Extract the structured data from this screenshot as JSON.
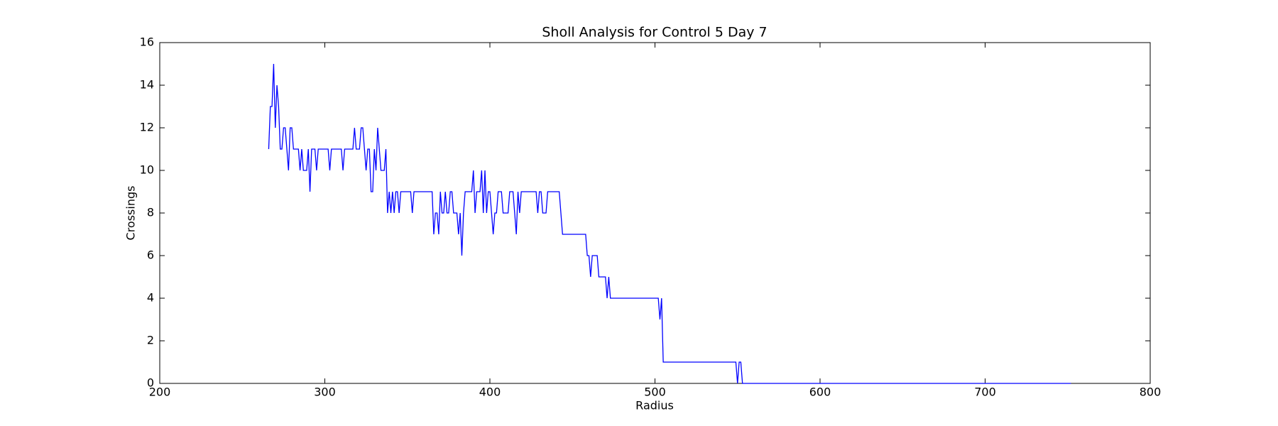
{
  "chart_data": {
    "type": "line",
    "title": "Sholl Analysis for Control 5 Day 7",
    "xlabel": "Radius",
    "ylabel": "Crossings",
    "color": "#0000ff",
    "x": [
      266,
      267,
      268,
      269,
      270,
      271,
      272,
      273,
      274,
      275,
      276,
      277,
      278,
      279,
      280,
      281,
      282,
      283,
      284,
      285,
      286,
      287,
      288,
      289,
      290,
      291,
      292,
      293,
      294,
      295,
      296,
      297,
      298,
      299,
      300,
      301,
      302,
      303,
      304,
      305,
      306,
      307,
      308,
      309,
      310,
      311,
      312,
      313,
      314,
      315,
      316,
      317,
      318,
      319,
      320,
      321,
      322,
      323,
      324,
      325,
      326,
      327,
      328,
      329,
      330,
      331,
      332,
      333,
      334,
      335,
      336,
      337,
      338,
      339,
      340,
      341,
      342,
      343,
      344,
      345,
      346,
      347,
      348,
      349,
      350,
      351,
      352,
      353,
      354,
      355,
      356,
      357,
      358,
      359,
      360,
      361,
      362,
      363,
      364,
      365,
      366,
      367,
      368,
      369,
      370,
      371,
      372,
      373,
      374,
      375,
      376,
      377,
      378,
      379,
      380,
      381,
      382,
      383,
      384,
      385,
      386,
      387,
      388,
      389,
      390,
      391,
      392,
      393,
      394,
      395,
      396,
      397,
      398,
      399,
      400,
      401,
      402,
      403,
      404,
      405,
      406,
      407,
      408,
      409,
      410,
      411,
      412,
      413,
      414,
      415,
      416,
      417,
      418,
      419,
      420,
      421,
      422,
      423,
      424,
      425,
      426,
      427,
      428,
      429,
      430,
      431,
      432,
      433,
      434,
      435,
      436,
      437,
      438,
      439,
      440,
      441,
      442,
      443,
      444,
      445,
      446,
      447,
      448,
      449,
      450,
      451,
      452,
      453,
      454,
      455,
      456,
      457,
      458,
      459,
      460,
      461,
      462,
      463,
      464,
      465,
      466,
      467,
      468,
      469,
      470,
      471,
      472,
      473,
      474,
      475,
      476,
      477,
      478,
      479,
      480,
      481,
      482,
      483,
      484,
      485,
      486,
      487,
      488,
      489,
      490,
      491,
      492,
      493,
      494,
      495,
      496,
      497,
      498,
      499,
      500,
      501,
      502,
      503,
      504,
      505,
      506,
      507,
      508,
      509,
      510,
      511,
      512,
      513,
      514,
      515,
      516,
      517,
      518,
      519,
      520,
      521,
      522,
      523,
      524,
      525,
      526,
      527,
      528,
      529,
      530,
      531,
      532,
      533,
      534,
      535,
      536,
      537,
      538,
      539,
      540,
      541,
      542,
      543,
      544,
      545,
      546,
      547,
      548,
      549,
      550,
      551,
      552,
      553,
      752
    ],
    "values": [
      11,
      13,
      13,
      15,
      12,
      14,
      13,
      11,
      11,
      12,
      12,
      11,
      10,
      12,
      12,
      11,
      11,
      11,
      11,
      10,
      11,
      10,
      10,
      10,
      11,
      9,
      11,
      11,
      11,
      10,
      11,
      11,
      11,
      11,
      11,
      11,
      11,
      10,
      11,
      11,
      11,
      11,
      11,
      11,
      11,
      10,
      11,
      11,
      11,
      11,
      11,
      11,
      12,
      11,
      11,
      11,
      12,
      12,
      11,
      10,
      11,
      11,
      9,
      9,
      11,
      10,
      12,
      11,
      10,
      10,
      10,
      11,
      8,
      9,
      8,
      9,
      8,
      9,
      9,
      8,
      9,
      9,
      9,
      9,
      9,
      9,
      9,
      8,
      9,
      9,
      9,
      9,
      9,
      9,
      9,
      9,
      9,
      9,
      9,
      9,
      7,
      8,
      8,
      7,
      9,
      8,
      8,
      9,
      8,
      8,
      9,
      9,
      8,
      8,
      8,
      7,
      8,
      6,
      8,
      9,
      9,
      9,
      9,
      9,
      10,
      8,
      9,
      9,
      9,
      10,
      8,
      10,
      8,
      9,
      9,
      8,
      7,
      8,
      8,
      9,
      9,
      9,
      8,
      8,
      8,
      8,
      9,
      9,
      9,
      8,
      7,
      9,
      8,
      9,
      9,
      9,
      9,
      9,
      9,
      9,
      9,
      9,
      9,
      8,
      9,
      9,
      8,
      8,
      8,
      9,
      9,
      9,
      9,
      9,
      9,
      9,
      9,
      8,
      7,
      7,
      7,
      7,
      7,
      7,
      7,
      7,
      7,
      7,
      7,
      7,
      7,
      7,
      7,
      6,
      6,
      5,
      6,
      6,
      6,
      6,
      5,
      5,
      5,
      5,
      5,
      4,
      5,
      4,
      4,
      4,
      4,
      4,
      4,
      4,
      4,
      4,
      4,
      4,
      4,
      4,
      4,
      4,
      4,
      4,
      4,
      4,
      4,
      4,
      4,
      4,
      4,
      4,
      4,
      4,
      4,
      4,
      4,
      3,
      4,
      1,
      1,
      1,
      1,
      1,
      1,
      1,
      1,
      1,
      1,
      1,
      1,
      1,
      1,
      1,
      1,
      1,
      1,
      1,
      1,
      1,
      1,
      1,
      1,
      1,
      1,
      1,
      1,
      1,
      1,
      1,
      1,
      1,
      1,
      1,
      1,
      1,
      1,
      1,
      1,
      1,
      1,
      1,
      1,
      1,
      0,
      1,
      1,
      0,
      0
    ],
    "xlim": [
      200,
      800
    ],
    "xticks": [
      200,
      300,
      400,
      500,
      600,
      700,
      800
    ],
    "ylim": [
      0,
      16
    ],
    "yticks": [
      0,
      2,
      4,
      6,
      8,
      10,
      12,
      14,
      16
    ]
  }
}
